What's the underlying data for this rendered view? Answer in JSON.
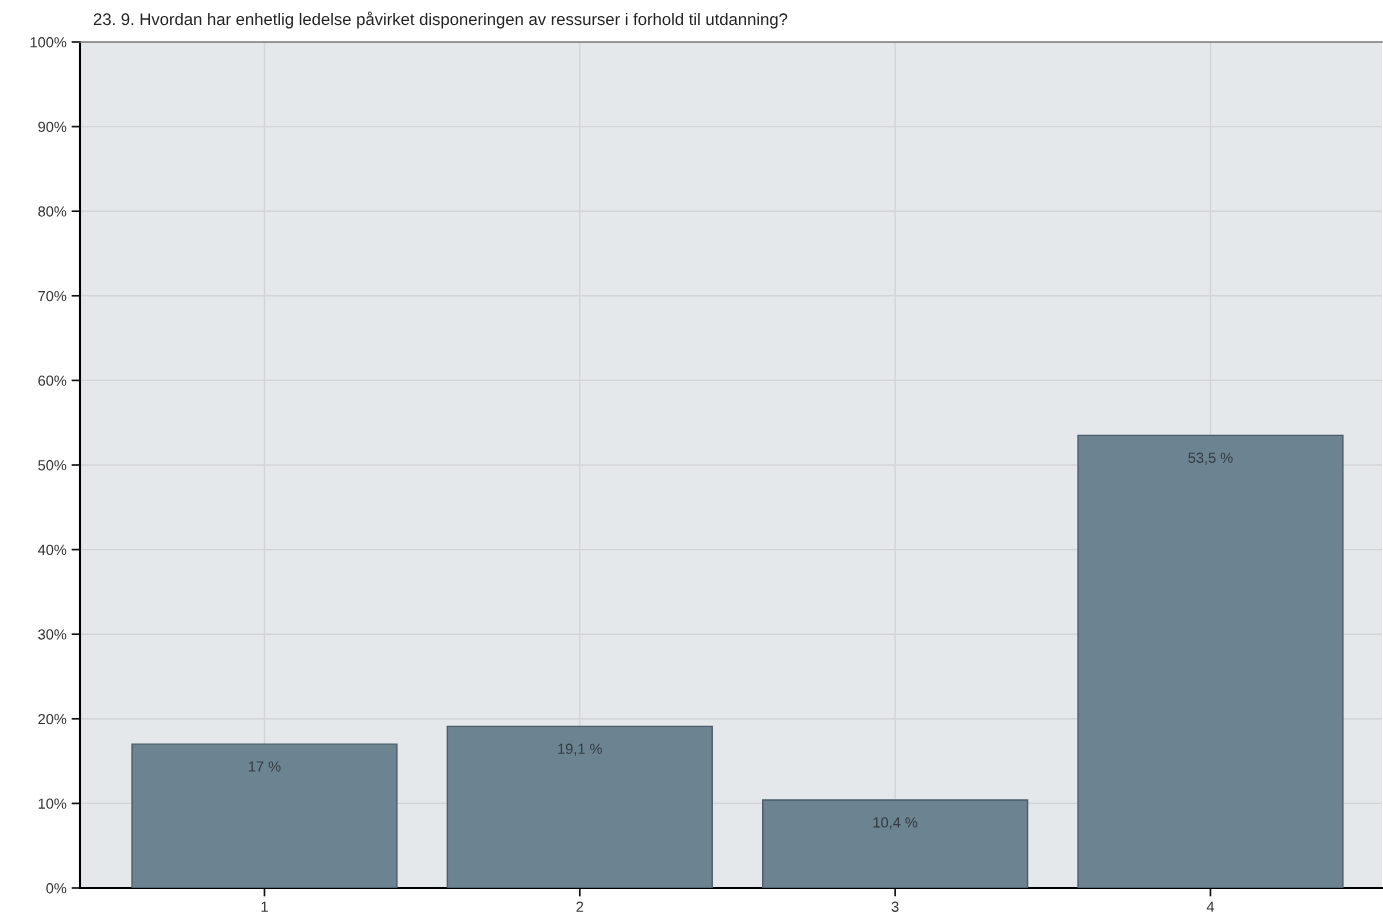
{
  "chart_data": {
    "type": "bar",
    "title": "23. 9. Hvordan har enhetlig ledelse påvirket disponeringen av ressurser i forhold til utdanning?",
    "categories": [
      "1",
      "2",
      "3",
      "4"
    ],
    "values": [
      17,
      19.1,
      10.4,
      53.5
    ],
    "value_labels": [
      "17 %",
      "19,1 %",
      "10,4 %",
      "53,5 %"
    ],
    "color": "#6c8391",
    "ylim": [
      0,
      100
    ],
    "yticks": [
      {
        "value": 0,
        "label": "0%"
      },
      {
        "value": 10,
        "label": "10%"
      },
      {
        "value": 20,
        "label": "20%"
      },
      {
        "value": 30,
        "label": "30%"
      },
      {
        "value": 40,
        "label": "40%"
      },
      {
        "value": 50,
        "label": "50%"
      },
      {
        "value": 60,
        "label": "60%"
      },
      {
        "value": 70,
        "label": "70%"
      },
      {
        "value": 80,
        "label": "80%"
      },
      {
        "value": 90,
        "label": "90%"
      },
      {
        "value": 100,
        "label": "100%"
      }
    ],
    "grid": true,
    "legend": false
  }
}
